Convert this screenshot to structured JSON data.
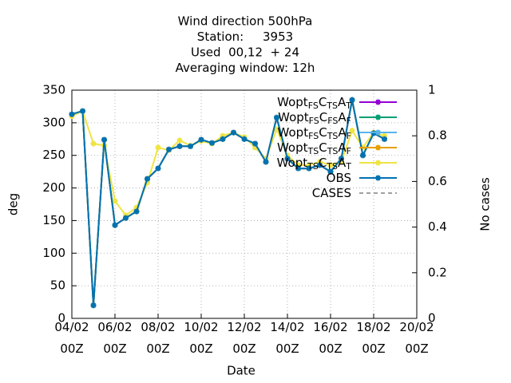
{
  "chart_data": {
    "type": "line",
    "title": [
      "Wind direction 500hPa",
      "Station:     3953",
      "Used  00,12  + 24",
      "Averaging window: 12h"
    ],
    "xlabel": "Date",
    "ylabel": "deg",
    "y2label": "No cases",
    "x": [
      "04/02 00Z",
      "04/02 12Z",
      "05/02 00Z",
      "05/02 12Z",
      "06/02 00Z",
      "06/02 12Z",
      "07/02 00Z",
      "07/02 12Z",
      "08/02 00Z",
      "08/02 12Z",
      "09/02 00Z",
      "09/02 12Z",
      "10/02 00Z",
      "10/02 12Z",
      "11/02 00Z",
      "11/02 12Z",
      "12/02 00Z",
      "12/02 12Z",
      "13/02 00Z",
      "13/02 12Z",
      "14/02 00Z",
      "14/02 12Z",
      "15/02 00Z",
      "15/02 12Z",
      "16/02 00Z",
      "16/02 12Z",
      "17/02 00Z",
      "17/02 12Z",
      "18/02 00Z",
      "18/02 12Z"
    ],
    "xlim": [
      "04/02 00Z",
      "20/02 00Z"
    ],
    "xticks": [
      "04/02 00Z",
      "06/02 00Z",
      "08/02 00Z",
      "10/02 00Z",
      "12/02 00Z",
      "14/02 00Z",
      "16/02 00Z",
      "18/02 00Z",
      "20/02 00Z"
    ],
    "ylim": [
      0,
      350
    ],
    "yticks": [
      0,
      50,
      100,
      150,
      200,
      250,
      300,
      350
    ],
    "y2lim": [
      0,
      1
    ],
    "y2ticks": [
      0,
      0.2,
      0.4,
      0.6,
      0.8,
      1
    ],
    "grid": true,
    "legend": "top-right",
    "series": [
      {
        "name": [
          "Wopt",
          "FS",
          "C",
          "TS",
          "A",
          "T"
        ],
        "color": "#9400d3",
        "values": [
          313,
          318,
          20,
          274,
          143,
          154,
          164,
          214,
          230,
          259,
          264,
          264,
          274,
          269,
          275,
          285,
          275,
          268,
          240,
          308,
          245,
          230,
          230,
          235,
          225,
          245,
          335,
          250,
          284,
          275
        ]
      },
      {
        "name": [
          "Wopt",
          "FS",
          "C",
          "FS",
          "A",
          "F"
        ],
        "color": "#009e73",
        "values": [
          313,
          318,
          20,
          274,
          143,
          154,
          164,
          214,
          230,
          259,
          264,
          264,
          274,
          269,
          275,
          285,
          275,
          268,
          240,
          308,
          245,
          230,
          230,
          235,
          225,
          245,
          335,
          250,
          284,
          275
        ]
      },
      {
        "name": [
          "Wopt",
          "FS",
          "C",
          "TS",
          "A",
          "F"
        ],
        "color": "#56b4e9",
        "values": [
          313,
          318,
          20,
          274,
          143,
          154,
          164,
          214,
          230,
          259,
          264,
          264,
          274,
          269,
          275,
          285,
          275,
          268,
          240,
          308,
          245,
          230,
          230,
          235,
          225,
          245,
          335,
          250,
          284,
          275
        ]
      },
      {
        "name": [
          "Wopt",
          "TS",
          "C",
          "TS",
          "A",
          "F"
        ],
        "color": "#e69f00",
        "values": [
          313,
          318,
          20,
          274,
          143,
          154,
          164,
          214,
          230,
          259,
          264,
          264,
          274,
          269,
          275,
          285,
          275,
          268,
          240,
          308,
          245,
          230,
          230,
          235,
          225,
          245,
          335,
          250,
          284,
          275
        ]
      },
      {
        "name": [
          "Wopt",
          "TS",
          "C",
          "TS",
          "A",
          "T"
        ],
        "color": "#f0e442",
        "values": [
          310,
          318,
          268,
          265,
          180,
          158,
          170,
          208,
          262,
          258,
          273,
          265,
          272,
          268,
          280,
          285,
          278,
          262,
          245,
          290,
          250,
          235,
          235,
          240,
          235,
          240,
          288,
          262,
          285,
          280
        ]
      },
      {
        "name": [
          "OBS"
        ],
        "color": "#0072b2",
        "values": [
          313,
          318,
          20,
          274,
          143,
          154,
          164,
          214,
          230,
          259,
          264,
          264,
          274,
          269,
          275,
          285,
          275,
          268,
          240,
          308,
          245,
          230,
          230,
          235,
          225,
          245,
          335,
          250,
          284,
          275
        ]
      },
      {
        "name": [
          "CASES"
        ],
        "color": "#a0a0a0",
        "dashed": true,
        "axis": "y2",
        "values": [
          null,
          null,
          null,
          null,
          null,
          null,
          null,
          null,
          null,
          null,
          null,
          null,
          null,
          null,
          null,
          null,
          null,
          null,
          null,
          null,
          null,
          null,
          null,
          null,
          null,
          null,
          null,
          null,
          null,
          null
        ]
      }
    ]
  }
}
